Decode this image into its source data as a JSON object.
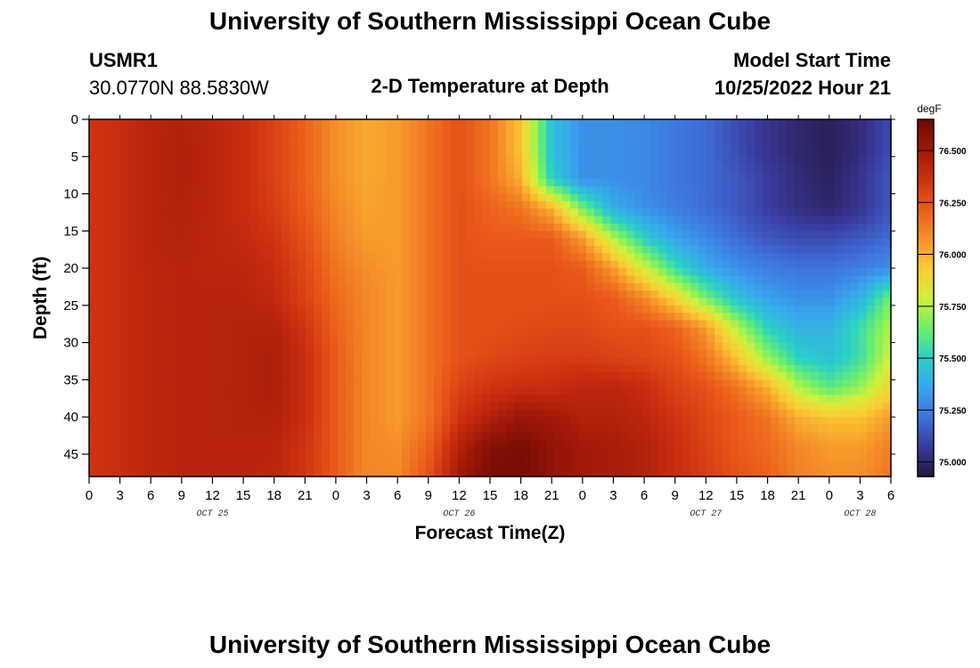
{
  "page": {
    "title_top": "University of Southern Mississippi Ocean Cube",
    "title_bottom": "University of Southern Mississippi Ocean Cube",
    "station_id": "USMR1",
    "station_coords": "30.0770N  88.5830W",
    "plot_title": "2-D Temperature at Depth",
    "model_start_label": "Model Start Time",
    "model_start_value": "10/25/2022 Hour 21"
  },
  "chart_data": {
    "type": "heatmap",
    "title": "2-D Temperature at Depth",
    "xlabel": "Forecast Time(Z)",
    "ylabel": "Depth (ft)",
    "x_unit": "hours since model start (10/25/2022 Hour 21Z)",
    "x_range": [
      -21,
      57
    ],
    "y_range": [
      0,
      48
    ],
    "y_inverted": true,
    "x_tick_hours": [
      -21,
      -18,
      -15,
      -12,
      -9,
      -6,
      -3,
      0,
      3,
      6,
      9,
      12,
      15,
      18,
      21,
      24,
      27,
      30,
      33,
      36,
      39,
      42,
      45,
      48,
      51,
      54,
      57
    ],
    "x_tick_labels": [
      "0",
      "3",
      "6",
      "9",
      "12",
      "15",
      "18",
      "21",
      "0",
      "3",
      "6",
      "9",
      "12",
      "15",
      "18",
      "21",
      "0",
      "3",
      "6",
      "9",
      "12",
      "15",
      "18",
      "21",
      "0",
      "3",
      "6"
    ],
    "date_labels": [
      {
        "text": "OCT 25",
        "hour": -9
      },
      {
        "text": "OCT 26",
        "hour": 15
      },
      {
        "text": "OCT 27",
        "hour": 39
      },
      {
        "text": "OCT 28",
        "hour": 54
      }
    ],
    "y_ticks": [
      0,
      5,
      10,
      15,
      20,
      25,
      30,
      35,
      40,
      45
    ],
    "colorbar": {
      "unit": "degF",
      "vmin": 74.93,
      "vmax": 76.65,
      "tick_values": [
        75.0,
        75.25,
        75.5,
        75.75,
        76.0,
        76.25,
        76.5
      ],
      "tick_labels": [
        "75.000",
        "75.250",
        "75.500",
        "75.750",
        "76.000",
        "76.250",
        "76.500"
      ],
      "colors": [
        "#24163f",
        "#3a3a9c",
        "#3f72dc",
        "#38a6ee",
        "#2bd0c6",
        "#6ef06a",
        "#d2f03a",
        "#fbcc34",
        "#f5902a",
        "#ea5a1a",
        "#cc3010",
        "#a01808",
        "#6e0a04"
      ]
    },
    "grid": false,
    "legend": "colorbar-right",
    "depths": [
      0,
      4,
      8,
      12,
      16,
      20,
      24,
      28,
      32,
      36,
      40,
      44,
      48
    ],
    "times": [
      -21,
      -18,
      -15,
      -12,
      -9,
      -6,
      -3,
      0,
      3,
      6,
      9,
      12,
      15,
      18,
      21,
      24,
      27,
      30,
      33,
      36,
      39,
      42,
      45,
      48,
      51,
      54,
      57
    ],
    "values": [
      [
        76.35,
        76.38,
        76.43,
        76.45,
        76.42,
        76.38,
        76.3,
        76.2,
        76.08,
        76.02,
        76.05,
        76.15,
        76.25,
        76.15,
        75.95,
        75.45,
        75.3,
        75.3,
        75.28,
        75.23,
        75.2,
        75.12,
        75.05,
        75.0,
        74.97,
        75.02,
        75.12
      ],
      [
        76.35,
        76.38,
        76.43,
        76.46,
        76.42,
        76.38,
        76.3,
        76.2,
        76.08,
        76.02,
        76.05,
        76.15,
        76.25,
        76.15,
        75.95,
        75.45,
        75.3,
        75.3,
        75.28,
        75.23,
        75.2,
        75.12,
        75.05,
        75.0,
        74.97,
        75.02,
        75.12
      ],
      [
        76.35,
        76.38,
        76.43,
        76.46,
        76.42,
        76.38,
        76.3,
        76.2,
        76.08,
        76.02,
        76.05,
        76.15,
        76.25,
        76.15,
        76.0,
        75.5,
        75.3,
        75.3,
        75.28,
        75.23,
        75.2,
        75.15,
        75.08,
        75.02,
        74.98,
        75.05,
        75.15
      ],
      [
        76.35,
        76.38,
        76.43,
        76.45,
        76.42,
        76.38,
        76.32,
        76.22,
        76.1,
        76.03,
        76.05,
        76.15,
        76.25,
        76.2,
        76.15,
        76.0,
        75.65,
        75.38,
        75.3,
        75.25,
        75.2,
        75.15,
        75.08,
        75.03,
        75.0,
        75.05,
        75.15
      ],
      [
        76.35,
        76.38,
        76.43,
        76.44,
        76.42,
        76.4,
        76.35,
        76.25,
        76.12,
        76.05,
        76.05,
        76.15,
        76.25,
        76.22,
        76.22,
        76.22,
        76.05,
        75.75,
        75.5,
        75.35,
        75.28,
        75.2,
        75.15,
        75.12,
        75.12,
        75.15,
        75.2
      ],
      [
        76.35,
        76.38,
        76.42,
        76.43,
        76.42,
        76.42,
        76.38,
        76.28,
        76.15,
        76.08,
        76.05,
        76.15,
        76.25,
        76.25,
        76.25,
        76.25,
        76.22,
        76.05,
        75.8,
        75.55,
        75.38,
        75.3,
        75.25,
        75.22,
        75.22,
        75.25,
        75.3
      ],
      [
        76.35,
        76.38,
        76.42,
        76.43,
        76.43,
        76.43,
        76.4,
        76.3,
        76.18,
        76.1,
        76.05,
        76.15,
        76.25,
        76.25,
        76.25,
        76.25,
        76.25,
        76.22,
        76.1,
        75.9,
        75.65,
        75.45,
        75.35,
        75.3,
        75.3,
        75.4,
        75.65
      ],
      [
        76.35,
        76.38,
        76.42,
        76.43,
        76.43,
        76.45,
        76.45,
        76.35,
        76.2,
        76.1,
        76.05,
        76.15,
        76.25,
        76.25,
        76.27,
        76.28,
        76.28,
        76.25,
        76.25,
        76.2,
        76.05,
        75.75,
        75.5,
        75.4,
        75.4,
        75.55,
        75.75
      ],
      [
        76.35,
        76.38,
        76.42,
        76.43,
        76.43,
        76.45,
        76.47,
        76.38,
        76.22,
        76.1,
        76.05,
        76.15,
        76.25,
        76.28,
        76.3,
        76.32,
        76.32,
        76.3,
        76.28,
        76.25,
        76.15,
        75.95,
        75.7,
        75.5,
        75.45,
        75.55,
        75.8
      ],
      [
        76.35,
        76.38,
        76.42,
        76.43,
        76.43,
        76.45,
        76.47,
        76.38,
        76.22,
        76.1,
        76.05,
        76.15,
        76.3,
        76.35,
        76.38,
        76.38,
        76.42,
        76.42,
        76.38,
        76.3,
        76.25,
        76.15,
        76.0,
        75.75,
        75.6,
        75.7,
        75.9
      ],
      [
        76.35,
        76.38,
        76.42,
        76.43,
        76.43,
        76.45,
        76.45,
        76.38,
        76.22,
        76.1,
        76.05,
        76.15,
        76.35,
        76.45,
        76.52,
        76.5,
        76.45,
        76.45,
        76.42,
        76.35,
        76.28,
        76.22,
        76.15,
        76.0,
        75.95,
        75.95,
        76.05
      ],
      [
        76.35,
        76.38,
        76.42,
        76.43,
        76.43,
        76.43,
        76.43,
        76.35,
        76.22,
        76.1,
        76.08,
        76.2,
        76.45,
        76.58,
        76.62,
        76.55,
        76.5,
        76.48,
        76.45,
        76.38,
        76.3,
        76.22,
        76.18,
        76.1,
        76.05,
        76.05,
        76.12
      ],
      [
        76.35,
        76.38,
        76.42,
        76.43,
        76.43,
        76.43,
        76.42,
        76.35,
        76.22,
        76.1,
        76.1,
        76.25,
        76.5,
        76.62,
        76.62,
        76.55,
        76.5,
        76.48,
        76.45,
        76.38,
        76.32,
        76.25,
        76.2,
        76.12,
        76.08,
        76.08,
        76.15
      ]
    ]
  }
}
